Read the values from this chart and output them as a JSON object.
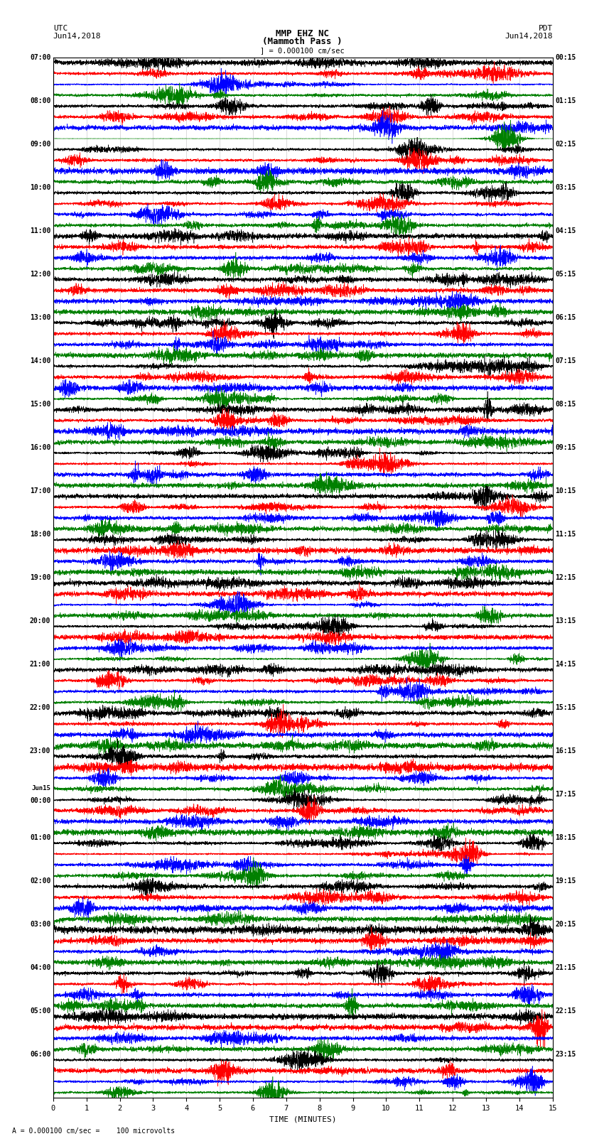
{
  "title_line1": "MMP EHZ NC",
  "title_line2": "(Mammoth Pass )",
  "scale_text": "] = 0.000100 cm/sec",
  "scale_footnote": "= 0.000100 cm/sec =    100 microvolts",
  "left_header1": "UTC",
  "left_header2": "Jun14,2018",
  "right_header1": "PDT",
  "right_header2": "Jun14,2018",
  "xlabel": "TIME (MINUTES)",
  "xlim": [
    0,
    15
  ],
  "xticks": [
    0,
    1,
    2,
    3,
    4,
    5,
    6,
    7,
    8,
    9,
    10,
    11,
    12,
    13,
    14,
    15
  ],
  "bg_color": "#ffffff",
  "trace_colors_hex": [
    "#000000",
    "#ff0000",
    "#0000ff",
    "#008000"
  ],
  "n_traces_per_hour": 4,
  "figsize": [
    8.5,
    16.13
  ],
  "dpi": 100,
  "left_times_utc": [
    "07:00",
    "08:00",
    "09:00",
    "10:00",
    "11:00",
    "12:00",
    "13:00",
    "14:00",
    "15:00",
    "16:00",
    "17:00",
    "18:00",
    "19:00",
    "20:00",
    "21:00",
    "22:00",
    "23:00",
    "Jun15\n00:00",
    "01:00",
    "02:00",
    "03:00",
    "04:00",
    "05:00",
    "06:00"
  ],
  "right_times_pdt": [
    "00:15",
    "01:15",
    "02:15",
    "03:15",
    "04:15",
    "05:15",
    "06:15",
    "07:15",
    "08:15",
    "09:15",
    "10:15",
    "11:15",
    "12:15",
    "13:15",
    "14:15",
    "15:15",
    "16:15",
    "17:15",
    "18:15",
    "19:15",
    "20:15",
    "21:15",
    "22:15",
    "23:15"
  ],
  "seed": 12345
}
